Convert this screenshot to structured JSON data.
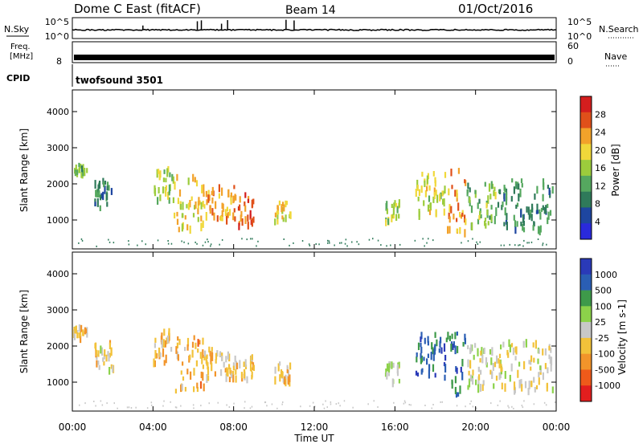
{
  "header": {
    "station": "Dome C East (fitACF)",
    "beam": "Beam 14",
    "date": "01/Oct/2016"
  },
  "top_panels": {
    "nsky": {
      "label": "N.Sky",
      "ticks": [
        "10^5",
        "10^0"
      ],
      "right_ticks": [
        "10^5",
        "10^0"
      ],
      "right_label": "N.Search"
    },
    "freq": {
      "label_lines": [
        "Freq.",
        "[MHz]"
      ],
      "ticks": [
        "8"
      ],
      "right_ticks": [
        "60",
        "0"
      ],
      "right_label": "Nave"
    },
    "cpid": {
      "label": "CPID",
      "text": "twofsound 3501"
    }
  },
  "x_axis": {
    "label": "Time UT",
    "ticks": [
      "00:00",
      "04:00",
      "08:00",
      "12:00",
      "16:00",
      "20:00",
      "00:00"
    ],
    "range_hours": [
      0,
      24
    ]
  },
  "chart_data": [
    {
      "type": "heatmap",
      "name": "power",
      "ylabel": "Slant Range [km]",
      "yticks": [
        "4000",
        "3000",
        "2000",
        "1000"
      ],
      "ylim": [
        200,
        4600
      ],
      "colorbar": {
        "label": "Power [dB]",
        "ticks": [
          "28",
          "24",
          "20",
          "16",
          "12",
          "8",
          "4"
        ],
        "range": [
          0,
          32
        ],
        "colors": [
          "#2a2adc",
          "#1e46a0",
          "#2f7a5a",
          "#55a85f",
          "#9ccc3c",
          "#f0d83a",
          "#f2a22a",
          "#e0501a",
          "#d41e1e"
        ]
      },
      "echo_regions": [
        {
          "t": [
            0.0,
            0.7
          ],
          "r": [
            2300,
            2600
          ],
          "v": 14
        },
        {
          "t": [
            1.0,
            2.0
          ],
          "r": [
            1400,
            2200
          ],
          "v": 10
        },
        {
          "t": [
            4.0,
            5.0
          ],
          "r": [
            1600,
            2500
          ],
          "v": 16
        },
        {
          "t": [
            5.0,
            6.5
          ],
          "r": [
            800,
            2300
          ],
          "v": 20
        },
        {
          "t": [
            6.5,
            8.0
          ],
          "r": [
            1100,
            2000
          ],
          "v": 22
        },
        {
          "t": [
            8.0,
            9.0
          ],
          "r": [
            900,
            1800
          ],
          "v": 26
        },
        {
          "t": [
            10.0,
            10.8
          ],
          "r": [
            1000,
            1600
          ],
          "v": 20
        },
        {
          "t": [
            15.5,
            16.2
          ],
          "r": [
            1000,
            1600
          ],
          "v": 16
        },
        {
          "t": [
            17.0,
            18.5
          ],
          "r": [
            1200,
            2400
          ],
          "v": 18
        },
        {
          "t": [
            18.5,
            19.5
          ],
          "r": [
            600,
            2500
          ],
          "v": 24
        },
        {
          "t": [
            19.5,
            21.0
          ],
          "r": [
            900,
            2100
          ],
          "v": 14
        },
        {
          "t": [
            21.0,
            23.8
          ],
          "r": [
            800,
            2200
          ],
          "v": 10
        }
      ]
    },
    {
      "type": "heatmap",
      "name": "velocity",
      "ylabel": "Slant Range [km]",
      "yticks": [
        "4000",
        "3000",
        "2000",
        "1000"
      ],
      "ylim": [
        200,
        4600
      ],
      "colorbar": {
        "label": "Velocity [m s-1]",
        "ticks": [
          "1000",
          "500",
          "100",
          "25",
          "-25",
          "-100",
          "-500",
          "-1000"
        ],
        "range": [
          -1200,
          1200
        ],
        "colors": [
          "#e21e1e",
          "#ee5a1a",
          "#f2942a",
          "#f2c23a",
          "#c8c8c8",
          "#8cd24a",
          "#3e9a4a",
          "#2a5eb4",
          "#2a3ab8"
        ]
      },
      "echo_regions": [
        {
          "t": [
            0.0,
            0.7
          ],
          "r": [
            2300,
            2600
          ],
          "v": -150
        },
        {
          "t": [
            1.0,
            2.0
          ],
          "r": [
            1400,
            2200
          ],
          "v": -120
        },
        {
          "t": [
            4.0,
            5.0
          ],
          "r": [
            1600,
            2500
          ],
          "v": -300
        },
        {
          "t": [
            5.0,
            6.5
          ],
          "r": [
            800,
            2300
          ],
          "v": -400
        },
        {
          "t": [
            6.5,
            8.0
          ],
          "r": [
            1100,
            2000
          ],
          "v": -350
        },
        {
          "t": [
            8.0,
            9.0
          ],
          "r": [
            1100,
            1800
          ],
          "v": -250
        },
        {
          "t": [
            10.0,
            10.8
          ],
          "r": [
            1000,
            1600
          ],
          "v": -200
        },
        {
          "t": [
            15.5,
            16.2
          ],
          "r": [
            1000,
            1600
          ],
          "v": 50
        },
        {
          "t": [
            17.0,
            18.5
          ],
          "r": [
            1200,
            2400
          ],
          "v": 800
        },
        {
          "t": [
            18.5,
            19.5
          ],
          "r": [
            700,
            2500
          ],
          "v": 700
        },
        {
          "t": [
            19.5,
            21.0
          ],
          "r": [
            900,
            2100
          ],
          "v": 60
        },
        {
          "t": [
            21.0,
            23.8
          ],
          "r": [
            800,
            2200
          ],
          "v": -80
        }
      ]
    }
  ]
}
